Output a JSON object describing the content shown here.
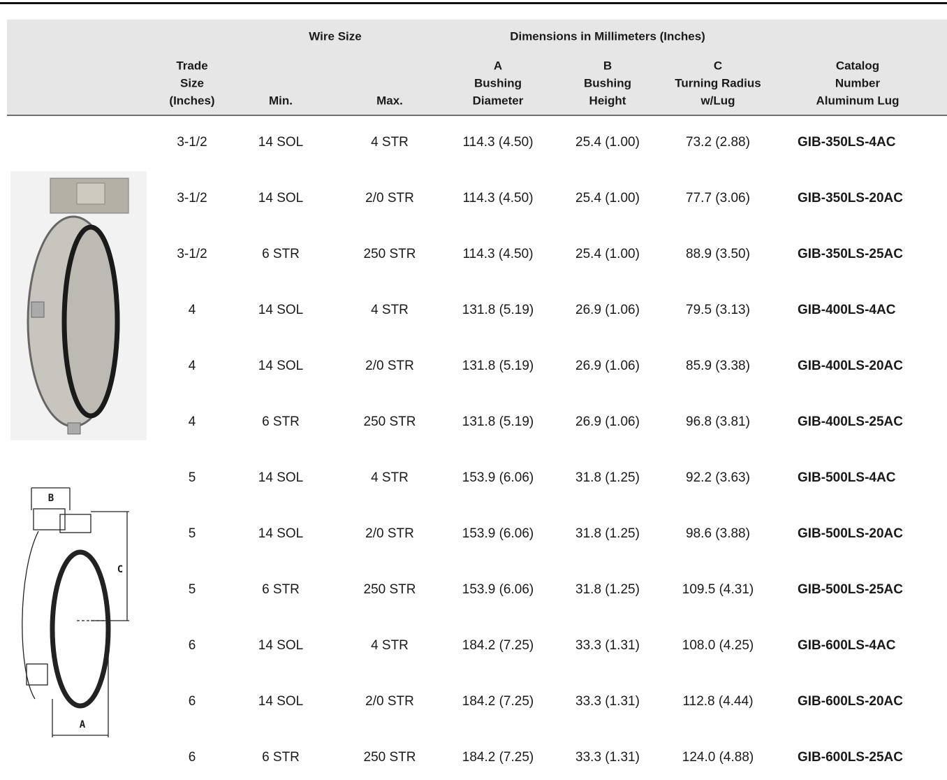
{
  "header": {
    "groups": [
      "Wire Size",
      "Dimensions in Millimeters (Inches)"
    ],
    "columns": [
      [
        "Trade",
        "Size",
        "(Inches)"
      ],
      [
        "Min."
      ],
      [
        "Max."
      ],
      [
        "A",
        "Bushing",
        "Diameter"
      ],
      [
        "B",
        "Bushing",
        "Height"
      ],
      [
        "C",
        "Turning Radius",
        "w/Lug"
      ],
      [
        "Catalog",
        "Number",
        "Aluminum Lug"
      ]
    ]
  },
  "table": {
    "rows": [
      [
        "3-1/2",
        "14 SOL",
        "4 STR",
        "114.3 (4.50)",
        "25.4 (1.00)",
        "73.2 (2.88)",
        "GIB-350LS-4AC"
      ],
      [
        "3-1/2",
        "14 SOL",
        "2/0 STR",
        "114.3 (4.50)",
        "25.4 (1.00)",
        "77.7 (3.06)",
        "GIB-350LS-20AC"
      ],
      [
        "3-1/2",
        "6 STR",
        "250 STR",
        "114.3 (4.50)",
        "25.4 (1.00)",
        "88.9 (3.50)",
        "GIB-350LS-25AC"
      ],
      [
        "4",
        "14 SOL",
        "4 STR",
        "131.8 (5.19)",
        "26.9 (1.06)",
        "79.5 (3.13)",
        "GIB-400LS-4AC"
      ],
      [
        "4",
        "14 SOL",
        "2/0 STR",
        "131.8 (5.19)",
        "26.9 (1.06)",
        "85.9 (3.38)",
        "GIB-400LS-20AC"
      ],
      [
        "4",
        "6 STR",
        "250 STR",
        "131.8 (5.19)",
        "26.9 (1.06)",
        "96.8 (3.81)",
        "GIB-400LS-25AC"
      ],
      [
        "5",
        "14 SOL",
        "4 STR",
        "153.9 (6.06)",
        "31.8 (1.25)",
        "92.2 (3.63)",
        "GIB-500LS-4AC"
      ],
      [
        "5",
        "14 SOL",
        "2/0 STR",
        "153.9 (6.06)",
        "31.8 (1.25)",
        "98.6 (3.88)",
        "GIB-500LS-20AC"
      ],
      [
        "5",
        "6 STR",
        "250 STR",
        "153.9 (6.06)",
        "31.8 (1.25)",
        "109.5 (4.31)",
        "GIB-500LS-25AC"
      ],
      [
        "6",
        "14 SOL",
        "4 STR",
        "184.2 (7.25)",
        "33.3 (1.31)",
        "108.0 (4.25)",
        "GIB-600LS-4AC"
      ],
      [
        "6",
        "14 SOL",
        "2/0 STR",
        "184.2 (7.25)",
        "33.3 (1.31)",
        "112.8 (4.44)",
        "GIB-600LS-20AC"
      ],
      [
        "6",
        "6 STR",
        "250 STR",
        "184.2 (7.25)",
        "33.3 (1.31)",
        "124.0 (4.88)",
        "GIB-600LS-25AC"
      ]
    ]
  },
  "diagram": {
    "labels": [
      "B",
      "C",
      "A"
    ]
  }
}
